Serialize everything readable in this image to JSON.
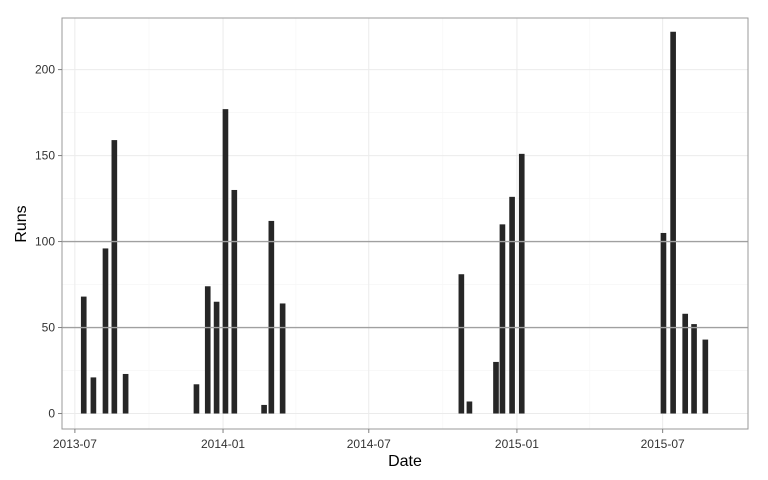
{
  "chart_data": {
    "type": "bar",
    "xlabel": "Date",
    "ylabel": "Runs",
    "x_range": [
      "2013-06-15",
      "2015-10-15"
    ],
    "ylim": [
      -9,
      230
    ],
    "x_ticks": [
      {
        "date": "2013-07-01",
        "label": "2013-07"
      },
      {
        "date": "2014-01-01",
        "label": "2014-01"
      },
      {
        "date": "2014-07-01",
        "label": "2014-07"
      },
      {
        "date": "2015-01-01",
        "label": "2015-01"
      },
      {
        "date": "2015-07-01",
        "label": "2015-07"
      }
    ],
    "y_ticks": [
      0,
      50,
      100,
      150,
      200
    ],
    "grid": true,
    "reference_lines": [
      50,
      100
    ],
    "bar_color": "#262626",
    "reference_line_color": "#a0a0a0",
    "panel_border_color": "#999999",
    "points": [
      {
        "x": "2013-07-12",
        "y": 68
      },
      {
        "x": "2013-07-24",
        "y": 21
      },
      {
        "x": "2013-08-08",
        "y": 96
      },
      {
        "x": "2013-08-19",
        "y": 159
      },
      {
        "x": "2013-09-02",
        "y": 23
      },
      {
        "x": "2013-11-29",
        "y": 17
      },
      {
        "x": "2013-12-13",
        "y": 74
      },
      {
        "x": "2013-12-24",
        "y": 65
      },
      {
        "x": "2014-01-04",
        "y": 177
      },
      {
        "x": "2014-01-15",
        "y": 130
      },
      {
        "x": "2014-02-21",
        "y": 5
      },
      {
        "x": "2014-03-02",
        "y": 112
      },
      {
        "x": "2014-03-16",
        "y": 64
      },
      {
        "x": "2014-10-24",
        "y": 81
      },
      {
        "x": "2014-11-03",
        "y": 7
      },
      {
        "x": "2014-12-06",
        "y": 30
      },
      {
        "x": "2014-12-14",
        "y": 110
      },
      {
        "x": "2014-12-26",
        "y": 126
      },
      {
        "x": "2015-01-07",
        "y": 151
      },
      {
        "x": "2015-07-02",
        "y": 105
      },
      {
        "x": "2015-07-14",
        "y": 222
      },
      {
        "x": "2015-07-29",
        "y": 58
      },
      {
        "x": "2015-08-09",
        "y": 52
      },
      {
        "x": "2015-08-23",
        "y": 43
      }
    ]
  }
}
